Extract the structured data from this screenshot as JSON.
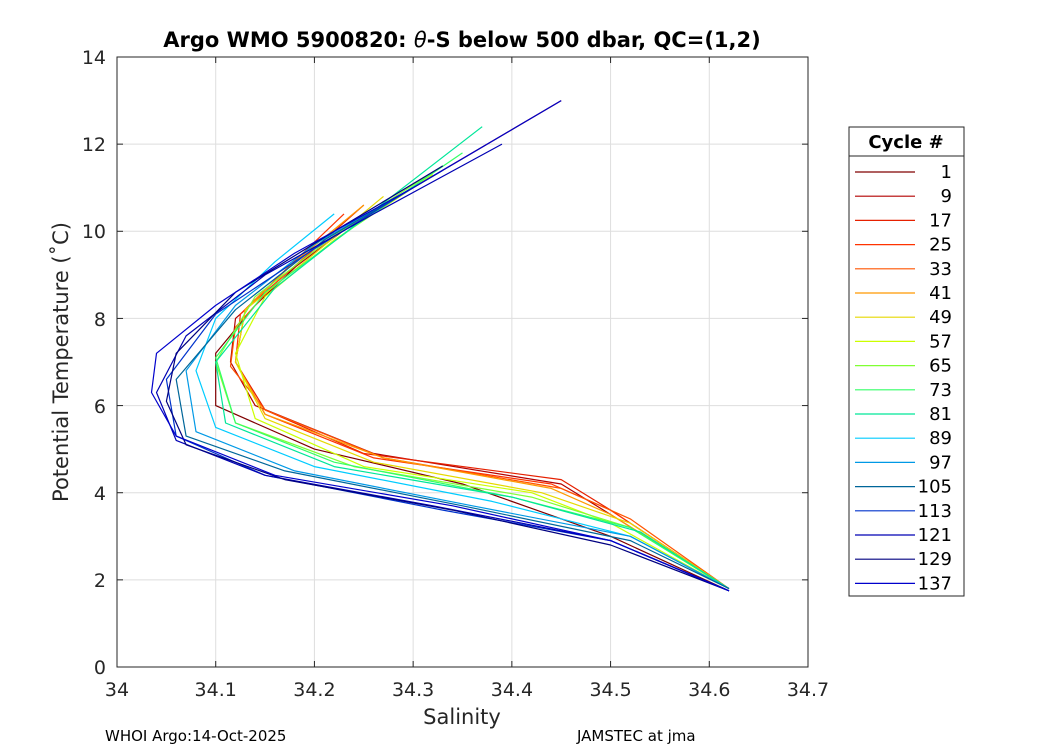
{
  "chart_data": {
    "type": "line",
    "title_pre": "Argo WMO 5900820: ",
    "title_theta": "θ",
    "title_post": "-S below 500 dbar,  QC=(1,2)",
    "xlabel": "Salinity",
    "ylabel": "Potential Temperature (˚C)",
    "xlim": [
      34.0,
      34.7
    ],
    "ylim": [
      0,
      14
    ],
    "xticks": [
      "34",
      "34.1",
      "34.2",
      "34.3",
      "34.4",
      "34.5",
      "34.6",
      "34.7"
    ],
    "yticks": [
      "0",
      "2",
      "4",
      "6",
      "8",
      "10",
      "12",
      "14"
    ],
    "grid": true,
    "legend_title": "Cycle #",
    "legend_position": "outside-right",
    "series": [
      {
        "name": "1",
        "color": "#800000",
        "x": [
          34.45,
          34.3,
          34.2,
          34.14,
          34.1,
          34.1,
          34.2,
          34.35,
          34.5,
          34.62
        ],
        "y": [
          13.0,
          11.0,
          9.6,
          8.3,
          7.2,
          6.0,
          5.0,
          4.2,
          3.0,
          1.75
        ]
      },
      {
        "name": "9",
        "color": "#b30000",
        "x": [
          34.24,
          34.17,
          34.12,
          34.115,
          34.14,
          34.26,
          34.45,
          34.5,
          34.62
        ],
        "y": [
          10.2,
          9.0,
          8.0,
          7.0,
          6.0,
          4.9,
          4.2,
          3.5,
          1.8
        ]
      },
      {
        "name": "17",
        "color": "#e62000",
        "x": [
          34.25,
          34.18,
          34.13,
          34.12,
          34.15,
          34.25,
          34.45,
          34.5,
          34.62
        ],
        "y": [
          10.6,
          9.2,
          8.2,
          7.0,
          5.9,
          4.9,
          4.3,
          3.6,
          1.8
        ]
      },
      {
        "name": "25",
        "color": "#ff3300",
        "x": [
          34.23,
          34.17,
          34.125,
          34.12,
          34.15,
          34.26,
          34.44,
          34.5,
          34.62
        ],
        "y": [
          10.4,
          9.1,
          8.1,
          7.0,
          5.8,
          4.8,
          4.2,
          3.6,
          1.8
        ]
      },
      {
        "name": "33",
        "color": "#ff5500",
        "x": [
          34.22,
          34.16,
          34.12,
          34.115,
          34.15,
          34.27,
          34.45,
          34.52,
          34.62
        ],
        "y": [
          10.0,
          8.8,
          7.8,
          6.9,
          5.9,
          4.8,
          4.1,
          3.4,
          1.8
        ]
      },
      {
        "name": "41",
        "color": "#ff9900",
        "x": [
          34.25,
          34.18,
          34.13,
          34.12,
          34.15,
          34.27,
          34.44,
          34.5,
          34.62
        ],
        "y": [
          10.6,
          9.3,
          8.2,
          7.0,
          5.8,
          4.8,
          4.1,
          3.5,
          1.8
        ]
      },
      {
        "name": "49",
        "color": "#e6d900",
        "x": [
          34.27,
          34.19,
          34.13,
          34.12,
          34.15,
          34.26,
          34.43,
          34.52,
          34.62
        ],
        "y": [
          10.8,
          9.3,
          8.2,
          7.0,
          5.7,
          4.7,
          4.0,
          3.3,
          1.8
        ]
      },
      {
        "name": "57",
        "color": "#ccff00",
        "x": [
          34.32,
          34.22,
          34.15,
          34.12,
          34.14,
          34.25,
          34.42,
          34.5,
          34.62
        ],
        "y": [
          11.3,
          9.8,
          8.5,
          7.2,
          5.7,
          4.6,
          4.0,
          3.3,
          1.8
        ]
      },
      {
        "name": "65",
        "color": "#80ff33",
        "x": [
          34.33,
          34.22,
          34.14,
          34.1,
          34.12,
          34.24,
          34.42,
          34.52,
          34.62
        ],
        "y": [
          11.5,
          9.9,
          8.5,
          7.0,
          5.6,
          4.6,
          3.9,
          3.2,
          1.8
        ]
      },
      {
        "name": "73",
        "color": "#33ff66",
        "x": [
          34.35,
          34.24,
          34.15,
          34.1,
          34.12,
          34.22,
          34.4,
          34.52,
          34.62
        ],
        "y": [
          11.8,
          10.1,
          8.6,
          7.1,
          5.6,
          4.7,
          3.9,
          3.2,
          1.8
        ]
      },
      {
        "name": "81",
        "color": "#00e699",
        "x": [
          34.37,
          34.25,
          34.16,
          34.1,
          34.11,
          34.22,
          34.4,
          34.53,
          34.62
        ],
        "y": [
          12.4,
          10.3,
          8.7,
          7.0,
          5.6,
          4.6,
          3.9,
          3.1,
          1.8
        ]
      },
      {
        "name": "89",
        "color": "#00ccff",
        "x": [
          34.22,
          34.16,
          34.1,
          34.08,
          34.1,
          34.2,
          34.38,
          34.52,
          34.62
        ],
        "y": [
          10.4,
          9.3,
          8.0,
          6.8,
          5.5,
          4.6,
          3.8,
          3.0,
          1.8
        ]
      },
      {
        "name": "97",
        "color": "#0099e6",
        "x": [
          34.3,
          34.2,
          34.12,
          34.07,
          34.08,
          34.18,
          34.36,
          34.52,
          34.62
        ],
        "y": [
          11.0,
          9.7,
          8.3,
          6.8,
          5.4,
          4.5,
          3.7,
          3.0,
          1.8
        ]
      },
      {
        "name": "105",
        "color": "#006699",
        "x": [
          34.33,
          34.21,
          34.12,
          34.06,
          34.07,
          34.17,
          34.35,
          34.52,
          34.62
        ],
        "y": [
          11.4,
          9.8,
          8.2,
          6.6,
          5.3,
          4.5,
          3.7,
          2.9,
          1.8
        ]
      },
      {
        "name": "113",
        "color": "#0033cc",
        "x": [
          34.3,
          34.2,
          34.1,
          34.05,
          34.06,
          34.15,
          34.33,
          34.5,
          34.62
        ],
        "y": [
          11.0,
          9.6,
          8.1,
          6.6,
          5.3,
          4.4,
          3.6,
          2.9,
          1.75
        ]
      },
      {
        "name": "121",
        "color": "#0000b3",
        "x": [
          34.39,
          34.26,
          34.15,
          34.07,
          34.04,
          34.06,
          34.15,
          34.32,
          34.5,
          34.62
        ],
        "y": [
          12.0,
          10.4,
          9.0,
          7.6,
          6.3,
          5.2,
          4.4,
          3.7,
          2.9,
          1.75
        ]
      },
      {
        "name": "129",
        "color": "#000080",
        "x": [
          34.33,
          34.22,
          34.12,
          34.06,
          34.05,
          34.07,
          34.17,
          34.34,
          34.5,
          34.62
        ],
        "y": [
          11.5,
          10.0,
          8.6,
          7.2,
          6.1,
          5.1,
          4.3,
          3.6,
          2.8,
          1.75
        ]
      },
      {
        "name": "137",
        "color": "#0000cc",
        "x": [
          34.45,
          34.3,
          34.18,
          34.1,
          34.04,
          34.035,
          34.06,
          34.16,
          34.34,
          34.5,
          34.62
        ],
        "y": [
          13.0,
          11.0,
          9.5,
          8.3,
          7.2,
          6.3,
          5.3,
          4.4,
          3.7,
          2.9,
          1.75
        ]
      }
    ]
  },
  "footer": {
    "left": "WHOI Argo:14-Oct-2025",
    "right": "JAMSTEC at jma"
  }
}
